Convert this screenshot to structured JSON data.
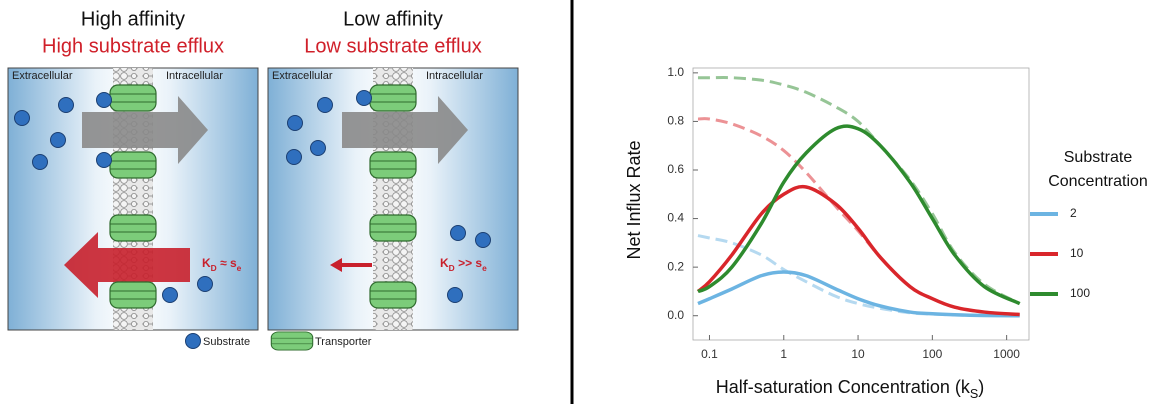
{
  "diagram": {
    "panels": [
      {
        "title": "High affinity",
        "subtitle": "High substrate efflux",
        "left_label": "Extracellular",
        "right_label": "Intracellular",
        "k_label": [
          "K",
          "D",
          " ≈ s",
          "e"
        ]
      },
      {
        "title": "Low affinity",
        "subtitle": "Low substrate efflux",
        "left_label": "Extracellular",
        "right_label": "Intracellular",
        "k_label": [
          "K",
          "D",
          " >> s",
          "e"
        ]
      }
    ],
    "legend": {
      "substrate": "Substrate",
      "transporter": "Transporter"
    }
  },
  "chart_data": {
    "type": "line",
    "xlabel": [
      "Half-saturation Concentration (k",
      "S",
      ")"
    ],
    "ylabel": "Net Influx Rate",
    "legend_title": [
      "Substrate",
      "Concentration"
    ],
    "x": [
      0.07,
      0.1,
      0.2,
      0.5,
      1,
      2,
      5,
      10,
      20,
      50,
      100,
      200,
      500,
      1500
    ],
    "series": [
      {
        "name": "2",
        "color": "#6cb4e2",
        "values": [
          0.05,
          0.07,
          0.11,
          0.165,
          0.18,
          0.165,
          0.11,
          0.07,
          0.04,
          0.015,
          0.008,
          0.004,
          0.001,
          0.0
        ],
        "dashed_values": [
          0.33,
          0.32,
          0.3,
          0.25,
          0.19,
          0.14,
          0.08,
          0.05,
          0.03,
          0.012,
          0.007,
          0.003,
          0.001,
          0.0
        ]
      },
      {
        "name": "10",
        "color": "#d9262b",
        "values": [
          0.1,
          0.14,
          0.25,
          0.42,
          0.5,
          0.53,
          0.46,
          0.36,
          0.24,
          0.12,
          0.07,
          0.035,
          0.015,
          0.005
        ],
        "dashed_values": [
          0.81,
          0.81,
          0.79,
          0.74,
          0.68,
          0.59,
          0.45,
          0.35,
          0.24,
          0.12,
          0.07,
          0.035,
          0.015,
          0.005
        ]
      },
      {
        "name": "100",
        "color": "#2e8b2e",
        "values": [
          0.1,
          0.12,
          0.2,
          0.38,
          0.55,
          0.67,
          0.77,
          0.77,
          0.7,
          0.55,
          0.4,
          0.25,
          0.12,
          0.05
        ],
        "dashed_values": [
          0.98,
          0.98,
          0.98,
          0.97,
          0.95,
          0.92,
          0.86,
          0.8,
          0.7,
          0.56,
          0.42,
          0.26,
          0.13,
          0.05
        ]
      }
    ],
    "xlim": [
      0.06,
      2000
    ],
    "log_x": true,
    "xticks": [
      0.1,
      1,
      10,
      100,
      1000
    ],
    "ylim": [
      -0.1,
      1.02
    ],
    "yticks": [
      {
        "value": 0,
        "label": "0.0"
      },
      0.2,
      0.4,
      0.6,
      0.8,
      {
        "value": 1,
        "label": "1.0"
      }
    ],
    "legend": "right"
  }
}
